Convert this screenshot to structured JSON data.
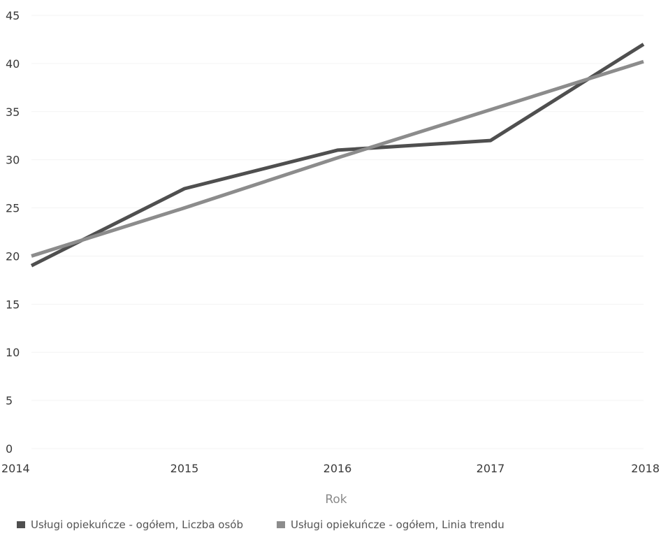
{
  "chart_data": {
    "type": "line",
    "categories": [
      "2014",
      "2015",
      "2016",
      "2017",
      "2018"
    ],
    "series": [
      {
        "name": "Usługi opiekuńcze - ogółem, Liczba osób",
        "values": [
          19,
          27,
          31,
          32,
          42
        ],
        "color": "#4f4f4f"
      },
      {
        "name": "Usługi opiekuńcze - ogółem, Linia trendu",
        "values": [
          20,
          25,
          30.2,
          35.2,
          40.2
        ],
        "color": "#8c8c8c"
      }
    ],
    "xlabel": "Rok",
    "ylabel": "",
    "ylim": [
      0,
      45
    ],
    "yticks": [
      "0",
      "5",
      "10",
      "15",
      "20",
      "25",
      "30",
      "35",
      "40",
      "45"
    ],
    "grid": true,
    "legend": "bottom-left"
  }
}
